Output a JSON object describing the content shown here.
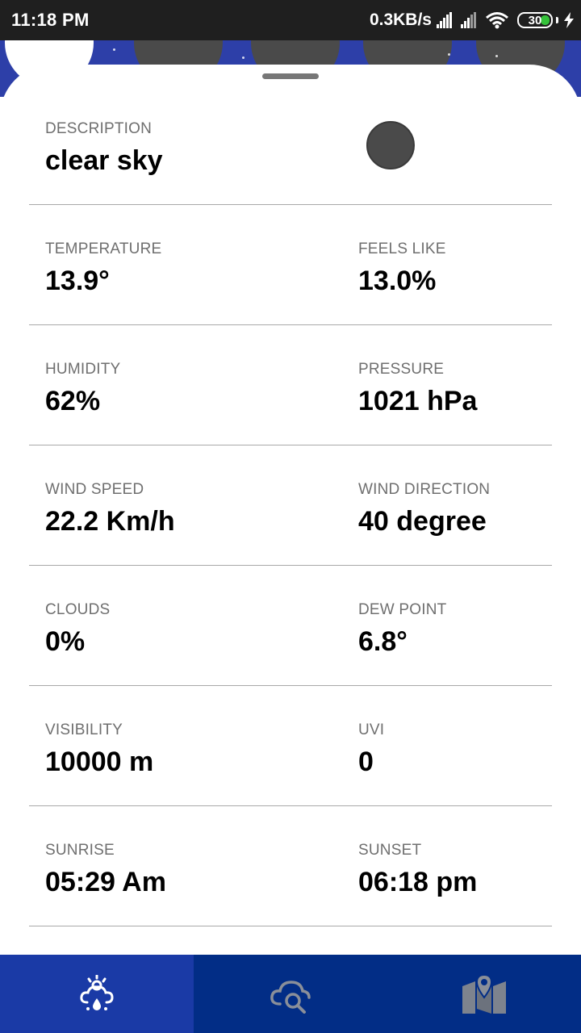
{
  "status_bar": {
    "time": "11:18 PM",
    "net_speed": "0.3KB/s",
    "battery": "30"
  },
  "details": {
    "description": {
      "label": "DESCRIPTION",
      "value": "clear sky"
    },
    "temperature": {
      "label": "TEMPERATURE",
      "value": "13.9°"
    },
    "feels_like": {
      "label": "FEELS LIKE",
      "value": "13.0%"
    },
    "humidity": {
      "label": "HUMIDITY",
      "value": "62%"
    },
    "pressure": {
      "label": "PRESSURE",
      "value": "1021 hPa"
    },
    "wind_speed": {
      "label": "WIND SPEED",
      "value": "22.2 Km/h"
    },
    "wind_direction": {
      "label": "WIND DIRECTION",
      "value": "40 degree"
    },
    "clouds": {
      "label": "CLOUDS",
      "value": "0%"
    },
    "dew_point": {
      "label": "DEW POINT",
      "value": "6.8°"
    },
    "visibility": {
      "label": "VISIBILITY",
      "value": "10000 m"
    },
    "uvi": {
      "label": "UVI",
      "value": "0"
    },
    "sunrise": {
      "label": "SUNRISE",
      "value": "05:29 Am"
    },
    "sunset": {
      "label": "SUNSET",
      "value": "06:18 pm"
    }
  },
  "bottom_nav": {
    "items": [
      {
        "icon": "weather-icon",
        "active": true
      },
      {
        "icon": "cloud-search-icon",
        "active": false
      },
      {
        "icon": "map-pin-icon",
        "active": false
      }
    ]
  },
  "colors": {
    "nav_background": "#022d86",
    "nav_active": "#1a3aa6",
    "header_band": "#2d3fa8"
  }
}
